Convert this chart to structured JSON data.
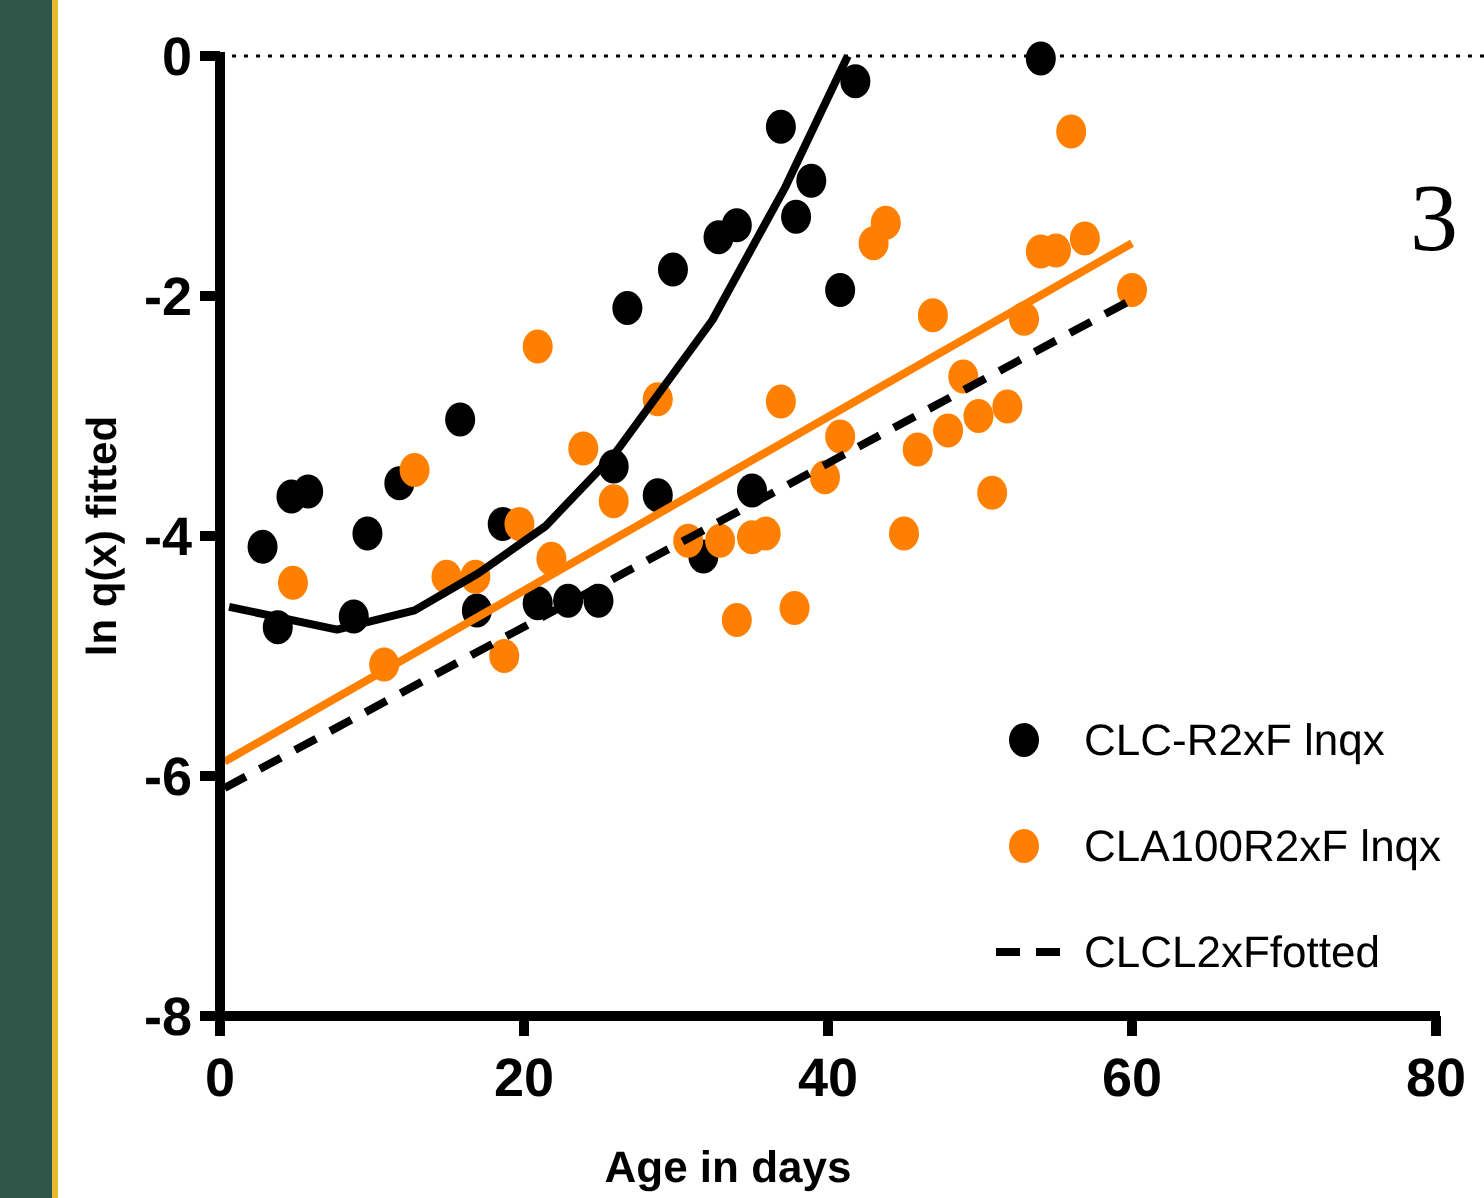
{
  "chart_data": {
    "type": "scatter",
    "xlabel": "Age in days",
    "ylabel": "ln q(x) fitted",
    "xlim": [
      0,
      80
    ],
    "ylim": [
      -8,
      0
    ],
    "xticks": [
      0,
      20,
      40,
      60,
      80
    ],
    "yticks": [
      0,
      -2,
      -4,
      -6,
      -8
    ],
    "grid": false,
    "legend": "bottom right",
    "annotations": [
      "3"
    ],
    "ref_lines": [
      {
        "axis": "y",
        "value": 0,
        "label": null,
        "color": "#000000",
        "line_style": "dotted"
      }
    ],
    "series": [
      {
        "name": "CLC-R2xF lnqx",
        "type": "scatter",
        "marker": "circle",
        "color": "#000000",
        "x": [
          2.8,
          3.8,
          4.7,
          5.8,
          8.8,
          9.7,
          11.8,
          15.8,
          16.9,
          18.6,
          20.9,
          22.9,
          24.9,
          25.9,
          26.8,
          28.8,
          29.8,
          31.8,
          32.8,
          34,
          35,
          36.9,
          37.9,
          38.9,
          40.8,
          41.8,
          54
        ],
        "values": [
          -4.09,
          -4.76,
          -3.67,
          -3.63,
          -4.67,
          -3.98,
          -3.56,
          -3.03,
          -4.62,
          -3.9,
          -4.56,
          -4.54,
          -4.54,
          -3.42,
          -2.1,
          -3.66,
          -1.78,
          -4.17,
          -1.51,
          -1.41,
          -3.62,
          -0.59,
          -1.34,
          -1.04,
          -1.95,
          -0.21,
          -0.02
        ]
      },
      {
        "name": "CLA100R2xF lnqx",
        "type": "scatter",
        "marker": "circle",
        "color": "#ff8000",
        "x": [
          4.8,
          10.8,
          12.8,
          14.9,
          16.8,
          18.7,
          19.7,
          20.9,
          21.8,
          23.9,
          25.9,
          28.8,
          30.8,
          32.9,
          34,
          35,
          35.9,
          36.9,
          37.8,
          39.8,
          40.8,
          43,
          43.8,
          45,
          45.9,
          46.9,
          47.9,
          48.9,
          49.9,
          50.8,
          51.8,
          52.9,
          54,
          55,
          56,
          56.9,
          60
        ],
        "values": [
          -4.39,
          -5.07,
          -3.45,
          -4.34,
          -4.34,
          -5.0,
          -3.9,
          -2.42,
          -4.19,
          -3.27,
          -3.71,
          -2.86,
          -4.04,
          -4.04,
          -4.7,
          -4.01,
          -3.98,
          -2.88,
          -4.6,
          -3.51,
          -3.17,
          -1.56,
          -1.39,
          -3.98,
          -3.28,
          -2.16,
          -3.12,
          -2.67,
          -3.0,
          -3.64,
          -2.92,
          -2.19,
          -1.63,
          -1.62,
          -0.63,
          -1.52,
          -1.95
        ]
      },
      {
        "type": "line",
        "marker": "none",
        "line_style": "solid",
        "color": "#000000",
        "x": [
          0.6,
          7.7,
          12.8,
          17,
          21.4,
          26,
          32.4,
          37.2,
          41.3
        ],
        "values": [
          -4.59,
          -4.78,
          -4.62,
          -4.31,
          -3.92,
          -3.31,
          -2.2,
          -1.09,
          0
        ]
      },
      {
        "type": "line",
        "marker": "none",
        "line_style": "solid",
        "color": "#ff8000",
        "x": [
          0.3,
          60
        ],
        "values": [
          -5.88,
          -1.56
        ]
      },
      {
        "name": "CLCL2xFfotted",
        "type": "line",
        "marker": "none",
        "line_style": "dashed",
        "color": "#000000",
        "x": [
          0.3,
          60
        ],
        "values": [
          -6.1,
          -2.03
        ]
      }
    ]
  }
}
